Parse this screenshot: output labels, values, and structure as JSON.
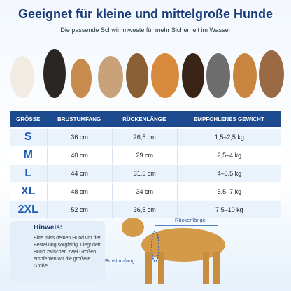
{
  "header": {
    "title": "Geeignet für kleine und mittelgroße Hunde",
    "subtitle": "Die passende Schwimmweste für mehr Sicherheit im Wasser"
  },
  "table": {
    "columns": [
      "GRÖSSE",
      "BRUSTUMFANG",
      "RÜCKENLÄNGE",
      "EMPFOHLENES GEWICHT"
    ],
    "rows": [
      [
        "S",
        "36 cm",
        "26,5 cm",
        "1,5–2,5 kg"
      ],
      [
        "M",
        "40 cm",
        "29 cm",
        "2,5–4 kg"
      ],
      [
        "L",
        "44 cm",
        "31,5 cm",
        "4–5,5 kg"
      ],
      [
        "XL",
        "48 cm",
        "34 cm",
        "5,5–7 kg"
      ],
      [
        "2XL",
        "52 cm",
        "36,5 cm",
        "7,5–10 kg"
      ]
    ]
  },
  "hint": {
    "title": "Hinweis:",
    "text": "Bitte miss deinen Hund vor der Bestellung sorgfältig. Liegt dein Hund zwischen zwei Größen, empfehlen wir die größere Größe."
  },
  "diagram": {
    "back_length": "Rückenlänge",
    "chest": "Brustumfang"
  }
}
